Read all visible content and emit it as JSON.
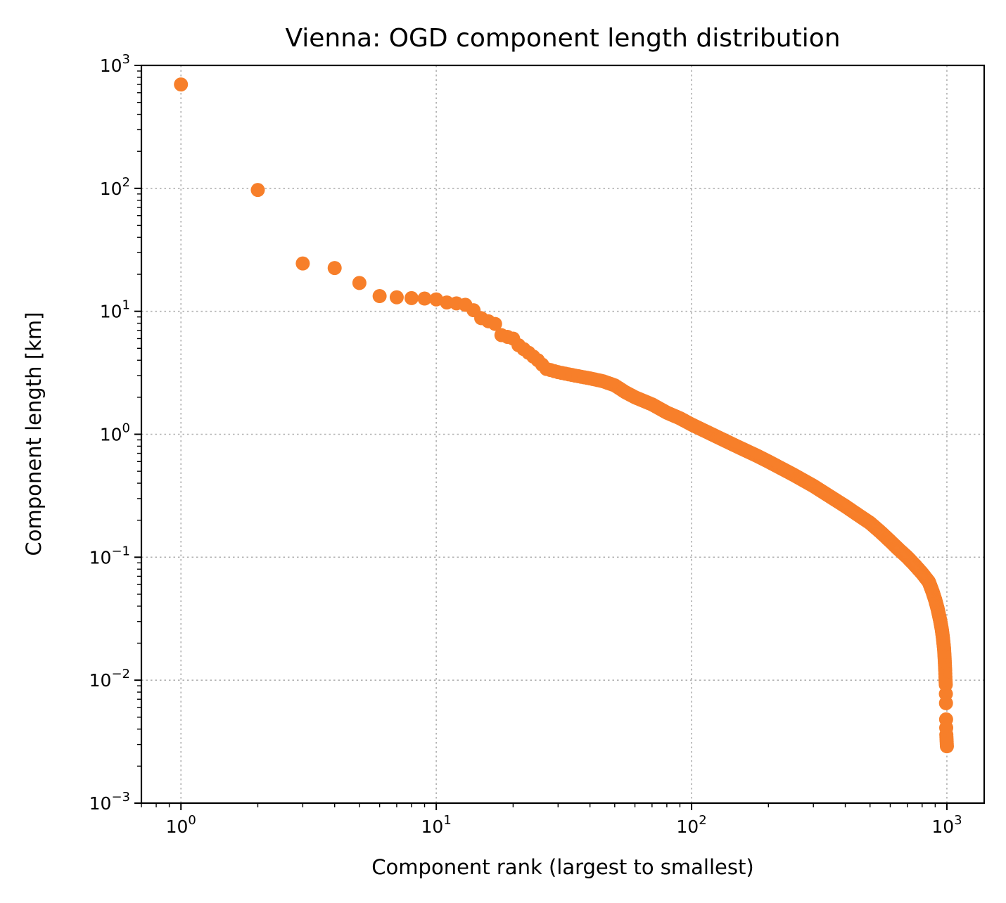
{
  "chart_data": {
    "type": "scatter",
    "title": "Vienna: OGD component length distribution",
    "xlabel": "Component rank (largest to smallest)",
    "ylabel": "Component length [km]",
    "x_scale": "log",
    "y_scale": "log",
    "xlim": [
      0.7,
      1400
    ],
    "ylim": [
      0.001,
      1000
    ],
    "x_ticks": [
      {
        "value": 1,
        "base": "10",
        "exp": "0"
      },
      {
        "value": 10,
        "base": "10",
        "exp": "1"
      },
      {
        "value": 100,
        "base": "10",
        "exp": "2"
      },
      {
        "value": 1000,
        "base": "10",
        "exp": "3"
      }
    ],
    "y_ticks": [
      {
        "value": 0.001,
        "base": "10",
        "exp": "−3"
      },
      {
        "value": 0.01,
        "base": "10",
        "exp": "−2"
      },
      {
        "value": 0.1,
        "base": "10",
        "exp": "−1"
      },
      {
        "value": 1,
        "base": "10",
        "exp": "0"
      },
      {
        "value": 10,
        "base": "10",
        "exp": "1"
      },
      {
        "value": 100,
        "base": "10",
        "exp": "2"
      },
      {
        "value": 1000,
        "base": "10",
        "exp": "3"
      }
    ],
    "grid": true,
    "marker_color": "#f77f2a",
    "rank_length_curve": [
      [
        1,
        700
      ],
      [
        2,
        97
      ],
      [
        3,
        24.5
      ],
      [
        4,
        22.5
      ],
      [
        5,
        17
      ],
      [
        6,
        13.3
      ],
      [
        7,
        13
      ],
      [
        8,
        12.8
      ],
      [
        9,
        12.7
      ],
      [
        10,
        12.5
      ],
      [
        11,
        11.8
      ],
      [
        12,
        11.6
      ],
      [
        13,
        11.3
      ],
      [
        14,
        10.2
      ],
      [
        15,
        8.8
      ],
      [
        16,
        8.3
      ],
      [
        17,
        7.9
      ],
      [
        18,
        6.4
      ],
      [
        19,
        6.2
      ],
      [
        20,
        6.0
      ],
      [
        21,
        5.3
      ],
      [
        23,
        4.6
      ],
      [
        25,
        4.0
      ],
      [
        27,
        3.4
      ],
      [
        30,
        3.2
      ],
      [
        35,
        3.0
      ],
      [
        40,
        2.85
      ],
      [
        45,
        2.7
      ],
      [
        50,
        2.5
      ],
      [
        55,
        2.2
      ],
      [
        60,
        2.0
      ],
      [
        70,
        1.75
      ],
      [
        80,
        1.5
      ],
      [
        90,
        1.35
      ],
      [
        100,
        1.2
      ],
      [
        120,
        1.0
      ],
      [
        150,
        0.8
      ],
      [
        180,
        0.67
      ],
      [
        200,
        0.6
      ],
      [
        250,
        0.47
      ],
      [
        300,
        0.38
      ],
      [
        350,
        0.31
      ],
      [
        400,
        0.26
      ],
      [
        450,
        0.22
      ],
      [
        500,
        0.19
      ],
      [
        550,
        0.16
      ],
      [
        600,
        0.135
      ],
      [
        650,
        0.115
      ],
      [
        700,
        0.1
      ],
      [
        750,
        0.086
      ],
      [
        800,
        0.074
      ],
      [
        850,
        0.063
      ],
      [
        880,
        0.052
      ],
      [
        900,
        0.045
      ],
      [
        920,
        0.038
      ],
      [
        940,
        0.031
      ],
      [
        955,
        0.026
      ],
      [
        965,
        0.022
      ],
      [
        975,
        0.018
      ],
      [
        980,
        0.015
      ],
      [
        985,
        0.012
      ],
      [
        988,
        0.01
      ],
      [
        990,
        0.0092
      ],
      [
        992,
        0.0065
      ],
      [
        993,
        0.0048
      ],
      [
        994,
        0.0041
      ],
      [
        995,
        0.0036
      ],
      [
        997,
        0.0033
      ],
      [
        1000,
        0.0029
      ]
    ]
  }
}
